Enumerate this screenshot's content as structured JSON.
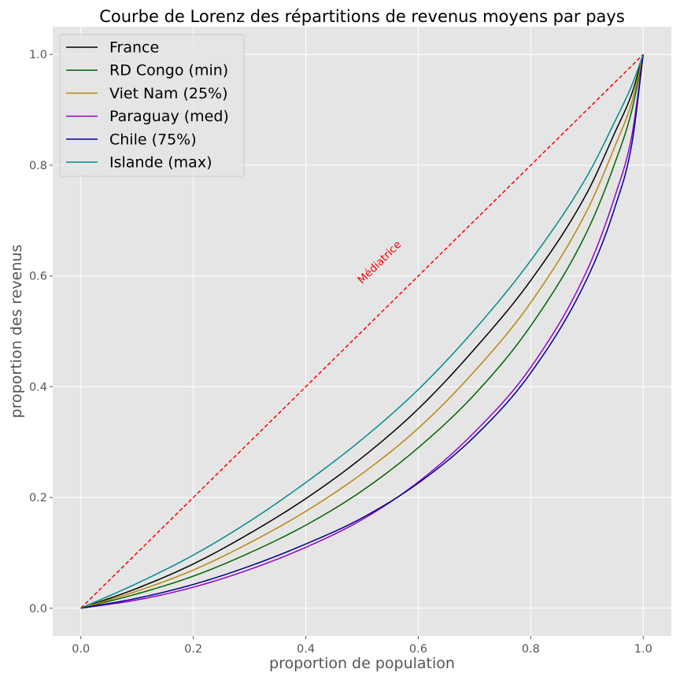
{
  "chart_data": {
    "type": "line",
    "title": "Courbe de Lorenz des répartitions de revenus moyens par pays",
    "xlabel": "proportion de population",
    "ylabel": "proportion des revenus",
    "xlim": [
      -0.05,
      1.05
    ],
    "ylim": [
      -0.05,
      1.05
    ],
    "xticks": [
      "0.0",
      "0.2",
      "0.4",
      "0.6",
      "0.8",
      "1.0"
    ],
    "yticks": [
      "0.0",
      "0.2",
      "0.4",
      "0.6",
      "0.8",
      "1.0"
    ],
    "grid": true,
    "legend_position": "top-left",
    "x": [
      0,
      0.1,
      0.2,
      0.3,
      0.4,
      0.5,
      0.6,
      0.7,
      0.8,
      0.9,
      0.95,
      0.98,
      1.0
    ],
    "series": [
      {
        "name": "France",
        "color": "#000000",
        "values": [
          0,
          0.036,
          0.08,
          0.135,
          0.198,
          0.272,
          0.36,
          0.468,
          0.592,
          0.75,
          0.86,
          0.93,
          1.0
        ]
      },
      {
        "name": "RD Congo (min)",
        "color": "#006400",
        "values": [
          0,
          0.026,
          0.058,
          0.1,
          0.15,
          0.212,
          0.29,
          0.386,
          0.51,
          0.68,
          0.805,
          0.9,
          1.0
        ]
      },
      {
        "name": "Viet Nam (25%)",
        "color": "#B8860B",
        "values": [
          0,
          0.031,
          0.069,
          0.118,
          0.175,
          0.243,
          0.325,
          0.428,
          0.552,
          0.718,
          0.835,
          0.915,
          1.0
        ]
      },
      {
        "name": "Paraguay (med)",
        "color": "#9400D3",
        "values": [
          0,
          0.015,
          0.038,
          0.07,
          0.11,
          0.16,
          0.228,
          0.318,
          0.435,
          0.61,
          0.745,
          0.855,
          1.0
        ]
      },
      {
        "name": "Chile (75%)",
        "color": "#00008B",
        "values": [
          0,
          0.018,
          0.043,
          0.076,
          0.116,
          0.163,
          0.226,
          0.31,
          0.425,
          0.595,
          0.725,
          0.84,
          1.0
        ]
      },
      {
        "name": "Islande (max)",
        "color": "#008B8B",
        "values": [
          0,
          0.045,
          0.096,
          0.157,
          0.227,
          0.305,
          0.395,
          0.503,
          0.628,
          0.78,
          0.88,
          0.945,
          1.0
        ]
      }
    ],
    "reference_line": {
      "x": [
        0,
        1
      ],
      "values": [
        0,
        1
      ],
      "color": "#FF0000",
      "style": "dashed"
    },
    "annotation": {
      "text": "Médiatrice",
      "x": 0.5,
      "y": 0.585,
      "color": "#FF0000"
    }
  }
}
